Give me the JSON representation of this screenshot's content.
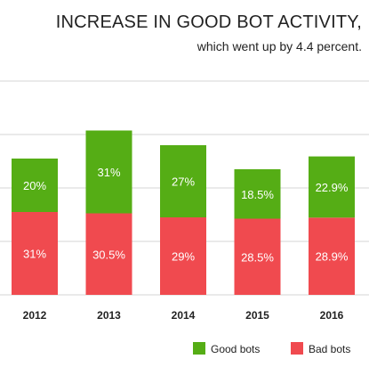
{
  "chart_data": {
    "type": "bar",
    "stacked": true,
    "title": "INCREASE IN GOOD BOT ACTIVITY,",
    "subtitle": "which went up by 4.4 percent.",
    "categories": [
      "2012",
      "2013",
      "2014",
      "2015",
      "2016"
    ],
    "series": [
      {
        "name": "Bad bots",
        "color": "#f04a4f",
        "values": [
          31,
          30.5,
          29,
          28.5,
          28.9
        ],
        "labels": [
          "31%",
          "30.5%",
          "29%",
          "28.5%",
          "28.9%"
        ]
      },
      {
        "name": "Good bots",
        "color": "#55ad15",
        "values": [
          20,
          31,
          27,
          18.5,
          22.9
        ],
        "labels": [
          "20%",
          "31%",
          "27%",
          "18.5%",
          "22.9%"
        ]
      }
    ],
    "ylim": [
      0,
      80
    ],
    "grid": true,
    "legend_position": "bottom-right",
    "legend_order": [
      "Good bots",
      "Bad bots"
    ]
  }
}
